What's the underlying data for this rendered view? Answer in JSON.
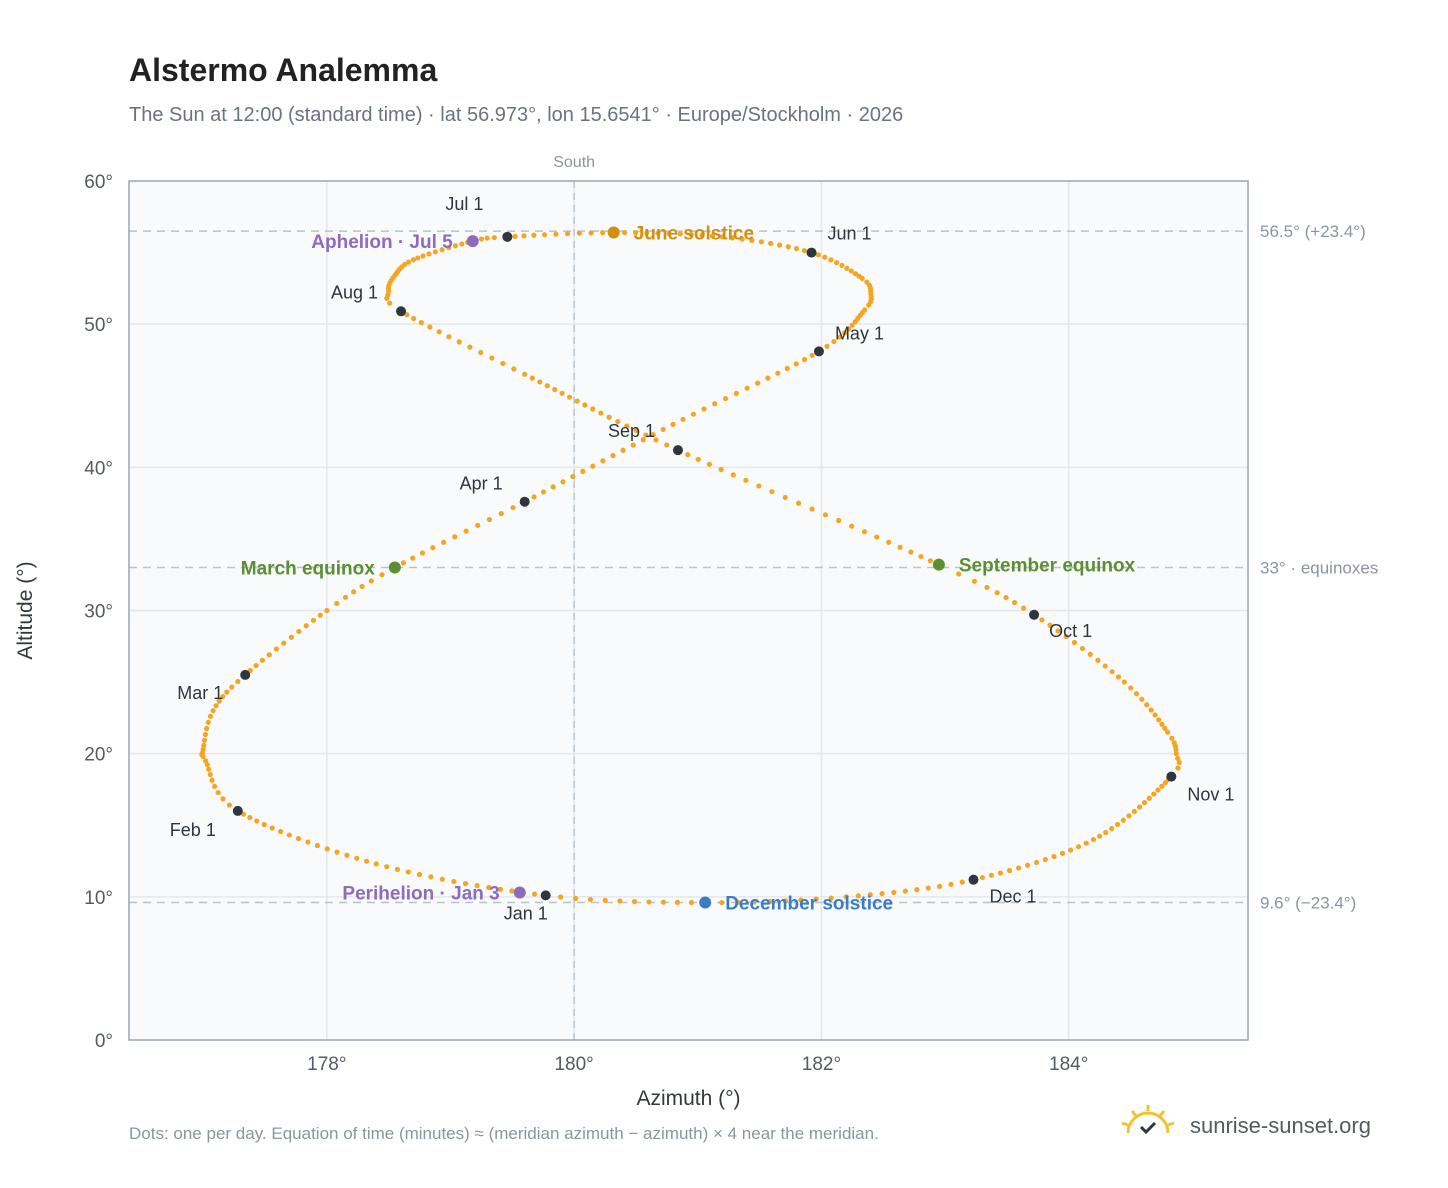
{
  "title": "Alstermo Analemma",
  "subtitle": "The Sun at 12:00 (standard time) · lat 56.973°, lon 15.6541° · Europe/Stockholm · 2026",
  "footnote": "Dots: one per day. Equation of time (minutes) ≈ (meridian azimuth − azimuth) × 4 near the meridian.",
  "brand": {
    "name": "sunrise-sunset.org",
    "icon": "sun-check-icon"
  },
  "colors": {
    "path": "#f4a623",
    "month_marker": "#2f3640",
    "solstice_june": "#d4900c",
    "solstice_december": "#3b7dc4",
    "equinox": "#5a8f32",
    "apsis": "#8e6bbf",
    "reference_line": "#b8c4cc",
    "grid": "#e3e8ec",
    "plot_bg": "#f8fafc",
    "frame": "#9aa6b2"
  },
  "chart_data": {
    "type": "scatter",
    "xlabel": "Azimuth (°)",
    "ylabel": "Altitude (°)",
    "xlim": [
      176.4,
      185.45
    ],
    "ylim": [
      0,
      60
    ],
    "xticks": [
      178,
      180,
      182,
      184
    ],
    "xtick_labels": [
      "178°",
      "180°",
      "182°",
      "184°"
    ],
    "yticks": [
      0,
      10,
      20,
      30,
      40,
      50,
      60
    ],
    "ytick_labels": [
      "0°",
      "10°",
      "20°",
      "30°",
      "40°",
      "50°",
      "60°"
    ],
    "grid": true,
    "meridian": {
      "azimuth": 180,
      "label": "South"
    },
    "reference_lines": [
      {
        "altitude": 56.5,
        "label": "56.5° (+23.4°)"
      },
      {
        "altitude": 33.0,
        "label": "33° · equinoxes"
      },
      {
        "altitude": 9.6,
        "label": "9.6° (−23.4°)"
      }
    ],
    "month_markers": [
      {
        "label": "Jan 1",
        "azimuth": 179.77,
        "altitude": 10.1
      },
      {
        "label": "Feb 1",
        "azimuth": 177.28,
        "altitude": 16.0
      },
      {
        "label": "Mar 1",
        "azimuth": 177.34,
        "altitude": 25.5
      },
      {
        "label": "Apr 1",
        "azimuth": 179.6,
        "altitude": 37.6
      },
      {
        "label": "May 1",
        "azimuth": 181.98,
        "altitude": 48.1
      },
      {
        "label": "Jun 1",
        "azimuth": 181.92,
        "altitude": 55.0
      },
      {
        "label": "Jul 1",
        "azimuth": 179.46,
        "altitude": 56.1
      },
      {
        "label": "Aug 1",
        "azimuth": 178.6,
        "altitude": 50.9
      },
      {
        "label": "Sep 1",
        "azimuth": 180.84,
        "altitude": 41.2
      },
      {
        "label": "Oct 1",
        "azimuth": 183.72,
        "altitude": 29.7
      },
      {
        "label": "Nov 1",
        "azimuth": 184.83,
        "altitude": 18.4
      },
      {
        "label": "Dec 1",
        "azimuth": 183.23,
        "altitude": 11.2
      }
    ],
    "events": [
      {
        "label": "June solstice",
        "azimuth": 180.32,
        "altitude": 56.4,
        "kind": "solstice_june"
      },
      {
        "label": "December solstice",
        "azimuth": 181.06,
        "altitude": 9.6,
        "kind": "solstice_december"
      },
      {
        "label": "March equinox",
        "azimuth": 178.55,
        "altitude": 33.0,
        "kind": "equinox"
      },
      {
        "label": "September equinox",
        "azimuth": 182.95,
        "altitude": 33.2,
        "kind": "equinox"
      },
      {
        "label": "Aphelion · Jul 5",
        "azimuth": 179.18,
        "altitude": 55.8,
        "kind": "apsis"
      },
      {
        "label": "Perihelion · Jan 3",
        "azimuth": 179.56,
        "altitude": 10.3,
        "kind": "apsis"
      }
    ],
    "path_anchors": [
      {
        "day": 0,
        "azimuth": 179.77,
        "altitude": 10.1
      },
      {
        "day": 15,
        "azimuth": 178.4,
        "altitude": 12.3
      },
      {
        "day": 31,
        "azimuth": 177.28,
        "altitude": 16.0
      },
      {
        "day": 40,
        "azimuth": 177.02,
        "altitude": 19.5
      },
      {
        "day": 45,
        "azimuth": 177.0,
        "altitude": 20.3
      },
      {
        "day": 52,
        "azimuth": 177.08,
        "altitude": 23.0
      },
      {
        "day": 59,
        "azimuth": 177.34,
        "altitude": 25.5
      },
      {
        "day": 71,
        "azimuth": 178.0,
        "altitude": 30.0
      },
      {
        "day": 78,
        "azimuth": 178.55,
        "altitude": 33.0
      },
      {
        "day": 90,
        "azimuth": 179.6,
        "altitude": 37.6
      },
      {
        "day": 105,
        "azimuth": 180.8,
        "altitude": 43.0
      },
      {
        "day": 120,
        "azimuth": 181.98,
        "altitude": 48.1
      },
      {
        "day": 131,
        "azimuth": 182.35,
        "altitude": 51.0
      },
      {
        "day": 136,
        "azimuth": 182.4,
        "altitude": 52.1
      },
      {
        "day": 141,
        "azimuth": 182.33,
        "altitude": 53.2
      },
      {
        "day": 151,
        "azimuth": 181.92,
        "altitude": 55.0
      },
      {
        "day": 161,
        "azimuth": 181.2,
        "altitude": 56.1
      },
      {
        "day": 171,
        "azimuth": 180.32,
        "altitude": 56.4
      },
      {
        "day": 181,
        "azimuth": 179.46,
        "altitude": 56.1
      },
      {
        "day": 185,
        "azimuth": 179.18,
        "altitude": 55.8
      },
      {
        "day": 195,
        "azimuth": 178.7,
        "altitude": 54.5
      },
      {
        "day": 202,
        "azimuth": 178.55,
        "altitude": 53.4
      },
      {
        "day": 208,
        "azimuth": 178.5,
        "altitude": 52.3
      },
      {
        "day": 212,
        "azimuth": 178.6,
        "altitude": 50.9
      },
      {
        "day": 225,
        "azimuth": 179.6,
        "altitude": 46.5
      },
      {
        "day": 243,
        "azimuth": 180.84,
        "altitude": 41.2
      },
      {
        "day": 265,
        "azimuth": 182.95,
        "altitude": 33.2
      },
      {
        "day": 273,
        "azimuth": 183.72,
        "altitude": 29.7
      },
      {
        "day": 285,
        "azimuth": 184.45,
        "altitude": 25.0
      },
      {
        "day": 295,
        "azimuth": 184.8,
        "altitude": 21.5
      },
      {
        "day": 300,
        "azimuth": 184.87,
        "altitude": 20.0
      },
      {
        "day": 304,
        "azimuth": 184.83,
        "altitude": 18.4
      },
      {
        "day": 320,
        "azimuth": 184.2,
        "altitude": 14.0
      },
      {
        "day": 334,
        "azimuth": 183.23,
        "altitude": 11.2
      },
      {
        "day": 345,
        "azimuth": 182.2,
        "altitude": 10.0
      },
      {
        "day": 354,
        "azimuth": 181.06,
        "altitude": 9.6
      },
      {
        "day": 365,
        "azimuth": 179.77,
        "altitude": 10.1
      }
    ]
  }
}
